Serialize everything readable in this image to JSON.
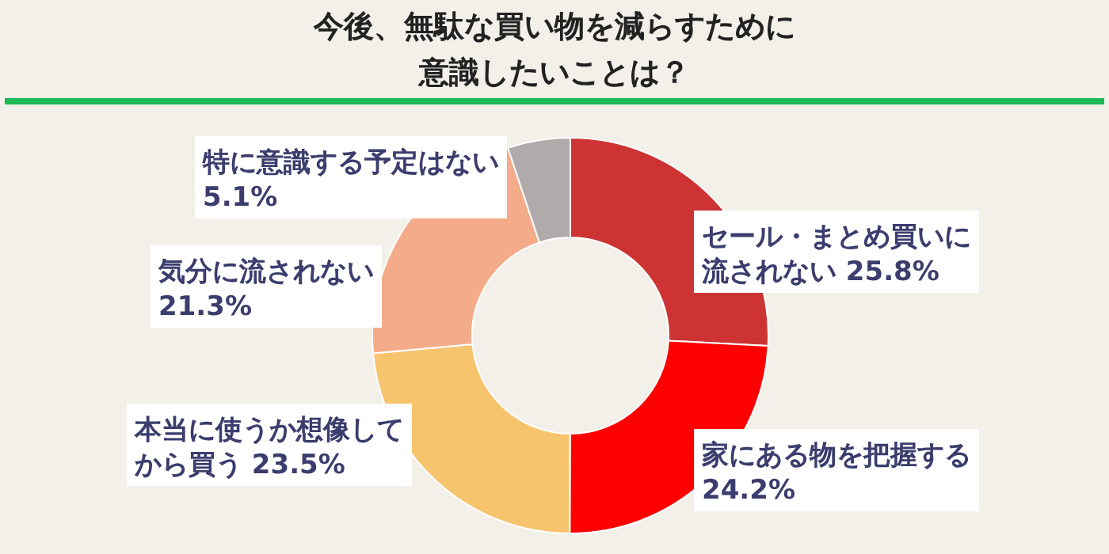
{
  "chart_data": {
    "type": "donut",
    "title": "今後、無駄な買い物を減らすために意識したいことは？",
    "categories": [
      "セール・まとめ買いに流されない",
      "家にある物を把握する",
      "本当に使うか想像してから買う",
      "気分に流されない",
      "特に意識する予定はない"
    ],
    "values": [
      25.8,
      24.2,
      23.5,
      21.3,
      5.1
    ],
    "value_labels": [
      "25.8%",
      "24.2%",
      "23.5%",
      "21.3%",
      "5.1%"
    ],
    "colors": [
      "#cd3333",
      "#ff0000",
      "#f7c46e",
      "#f4ab8a",
      "#b0abaa"
    ]
  }
}
